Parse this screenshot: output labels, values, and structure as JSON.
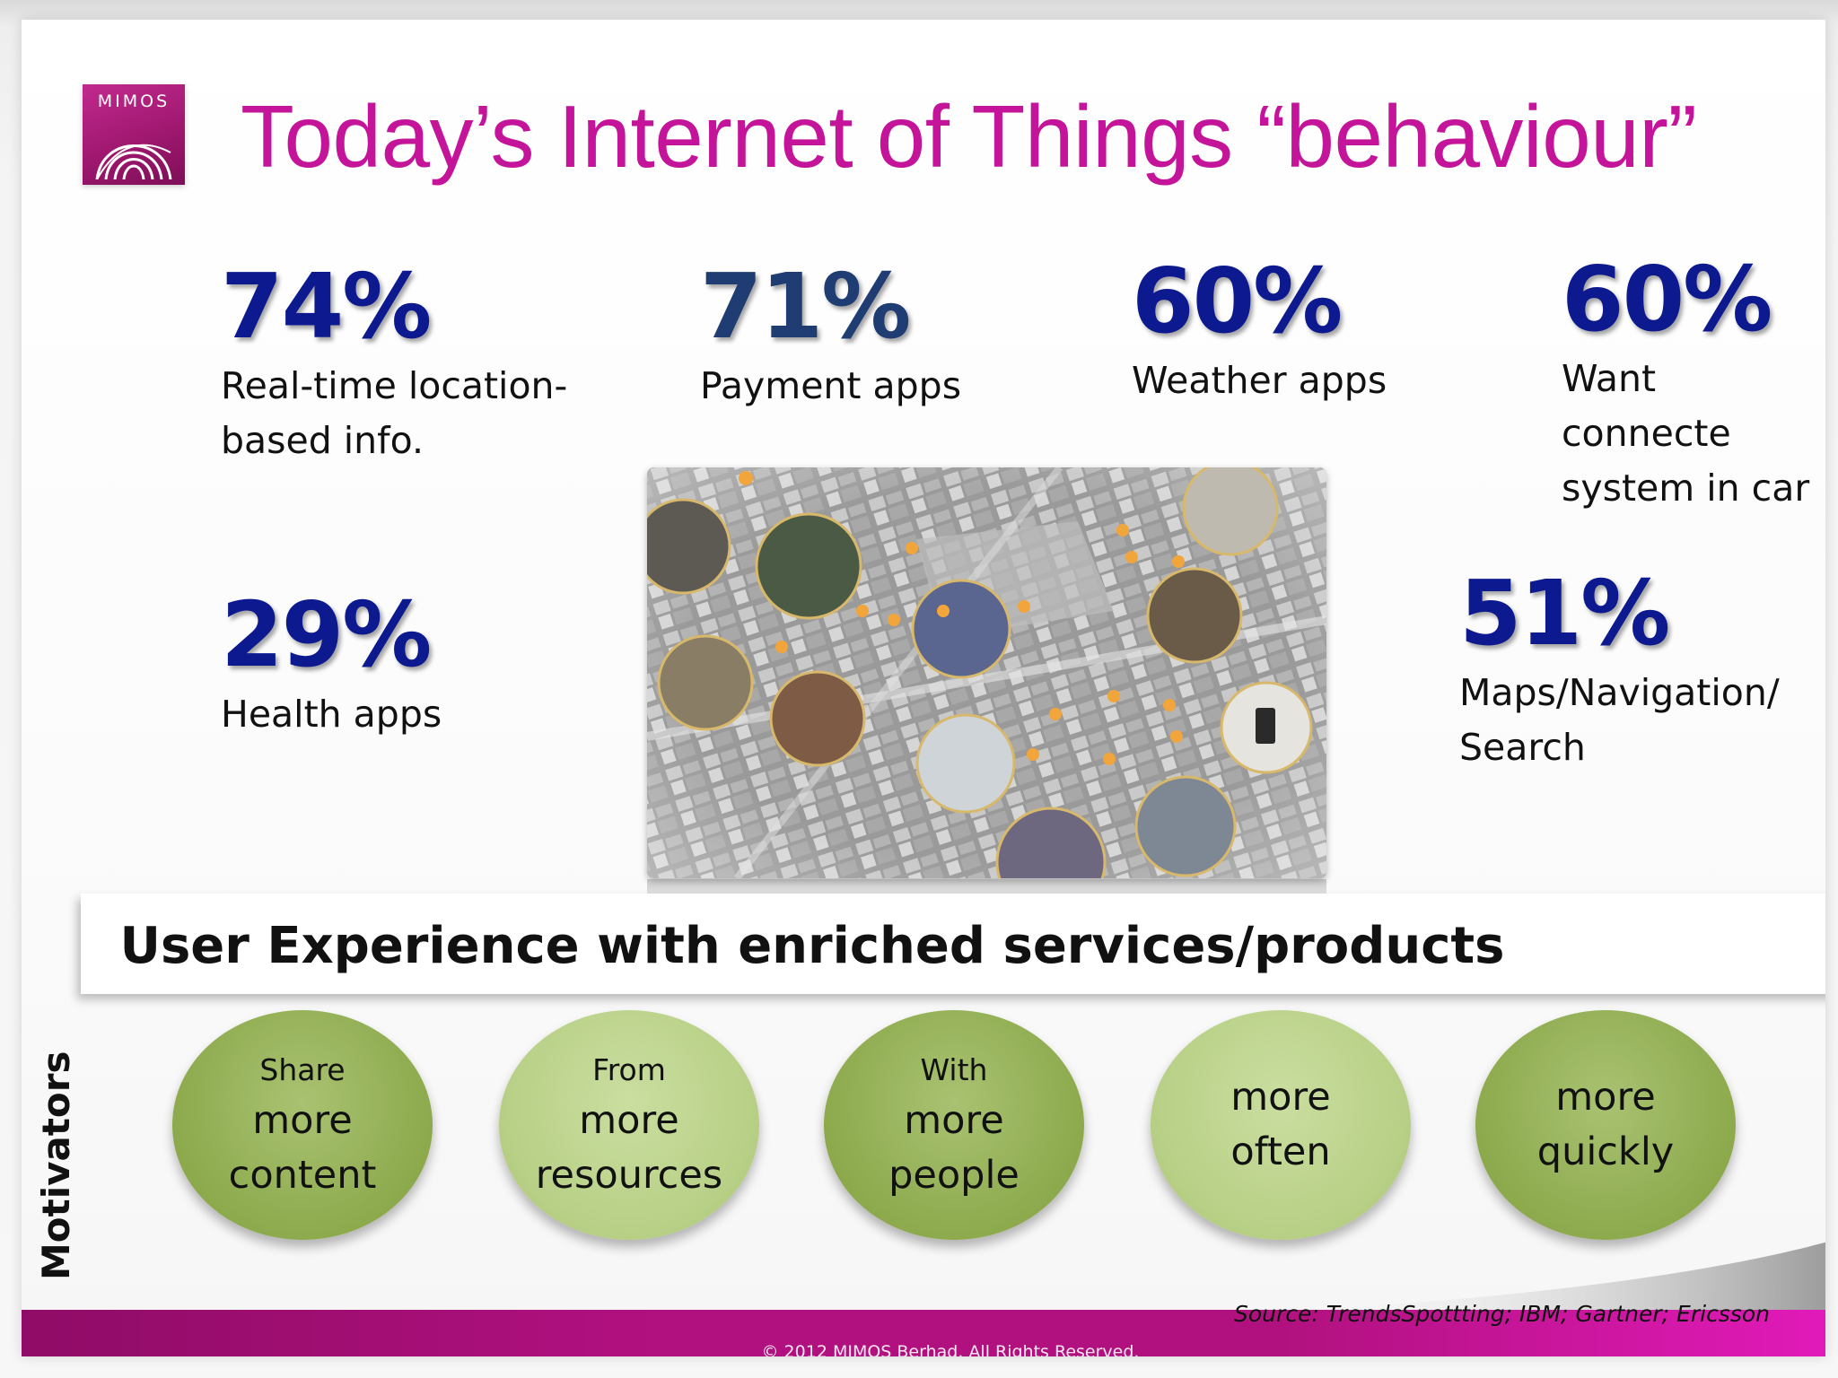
{
  "logo": {
    "text": "MIMOS"
  },
  "title": "Today’s Internet of Things “behaviour”",
  "stats": [
    {
      "value": "74%",
      "label": "Real-time location-\nbased info."
    },
    {
      "value": "71%",
      "label": "Payment apps"
    },
    {
      "value": "60%",
      "label": "Weather apps"
    },
    {
      "value": "60%",
      "label": "Want connecte\nsystem in car"
    },
    {
      "value": "29%",
      "label": "Health apps"
    },
    {
      "value": "51%",
      "label": "Maps/Navigation/\nSearch"
    }
  ],
  "banner": "User Experience with enriched services/products",
  "motivators_label": "Motivators",
  "motivators": [
    {
      "small": "Share",
      "big": "more\ncontent"
    },
    {
      "small": "From",
      "big": "more\nresources"
    },
    {
      "small": "With",
      "big": "more\npeople"
    },
    {
      "small": "",
      "big": "more\noften"
    },
    {
      "small": "",
      "big": "more\nquickly"
    }
  ],
  "source": "Source: TrendsSpottting; IBM; Gartner; Ericsson",
  "copyright": "© 2012 MIMOS Berhad. All Rights Reserved.",
  "colors": {
    "title": "#c4159a",
    "stat_value": "#0d1a8f",
    "stat_value_alt": "#1f3d73",
    "circle_dark": "#8daa4d",
    "circle_light": "#b7cf85",
    "footer": "#b1107f"
  }
}
